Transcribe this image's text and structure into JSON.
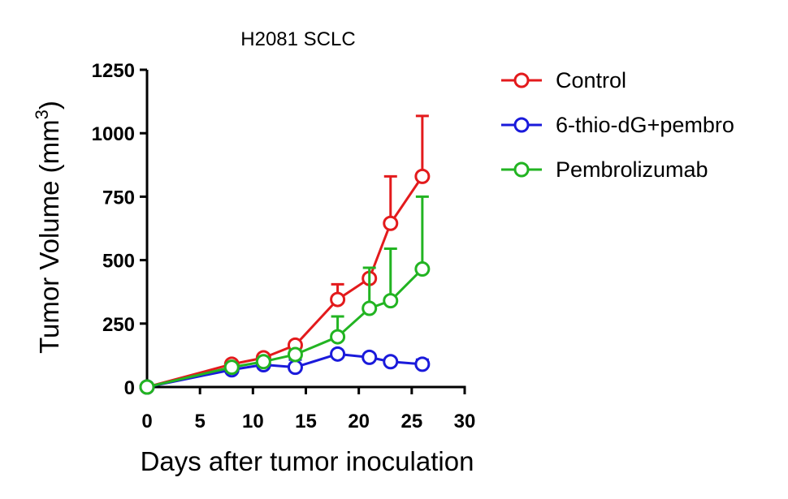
{
  "chart_data": {
    "type": "line",
    "title": "H2081 SCLC",
    "xlabel": "Days after tumor inoculation",
    "ylabel": "Tumor Volume (mm",
    "ylabel_sup": "3",
    "ylabel_close": ")",
    "xlim": [
      0,
      30
    ],
    "ylim": [
      0,
      1250
    ],
    "xticks": [
      0,
      5,
      10,
      15,
      20,
      25,
      30
    ],
    "yticks": [
      0,
      250,
      500,
      750,
      1000,
      1250
    ],
    "grid": false,
    "legend_position": "right",
    "series": [
      {
        "name": "Control",
        "color": "#e31a1c",
        "marker": "open-circle",
        "error_bars": "upper",
        "points": [
          {
            "x": 0,
            "y": 0,
            "err": 0
          },
          {
            "x": 8,
            "y": 90,
            "err": 0
          },
          {
            "x": 11,
            "y": 115,
            "err": 12
          },
          {
            "x": 14,
            "y": 165,
            "err": 0
          },
          {
            "x": 18,
            "y": 345,
            "err": 60
          },
          {
            "x": 21,
            "y": 428,
            "err": 0
          },
          {
            "x": 23,
            "y": 645,
            "err": 185
          },
          {
            "x": 26,
            "y": 830,
            "err": 238
          }
        ]
      },
      {
        "name": "6-thio-dG+pembro",
        "color": "#1a1adb",
        "marker": "open-circle",
        "error_bars": "upper",
        "points": [
          {
            "x": 0,
            "y": 0,
            "err": 0
          },
          {
            "x": 8,
            "y": 68,
            "err": 0
          },
          {
            "x": 11,
            "y": 88,
            "err": 20
          },
          {
            "x": 14,
            "y": 78,
            "err": 30
          },
          {
            "x": 18,
            "y": 130,
            "err": 0
          },
          {
            "x": 21,
            "y": 117,
            "err": 0
          },
          {
            "x": 23,
            "y": 100,
            "err": 0
          },
          {
            "x": 26,
            "y": 90,
            "err": 18
          }
        ]
      },
      {
        "name": "Pembrolizumab",
        "color": "#22b422",
        "marker": "open-circle",
        "error_bars": "upper",
        "points": [
          {
            "x": 0,
            "y": 0,
            "err": 0
          },
          {
            "x": 8,
            "y": 78,
            "err": 0
          },
          {
            "x": 11,
            "y": 100,
            "err": 10
          },
          {
            "x": 14,
            "y": 128,
            "err": 18
          },
          {
            "x": 18,
            "y": 198,
            "err": 80
          },
          {
            "x": 21,
            "y": 310,
            "err": 160
          },
          {
            "x": 23,
            "y": 340,
            "err": 205
          },
          {
            "x": 26,
            "y": 465,
            "err": 285
          }
        ]
      }
    ]
  }
}
